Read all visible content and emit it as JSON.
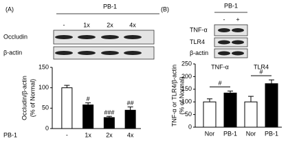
{
  "panels": [
    {
      "label": "(A)",
      "treatment": "PB-1",
      "lanes": [
        "-",
        "1x",
        "2x",
        "4x"
      ],
      "rows": [
        "Occludin",
        "β-actin"
      ]
    },
    {
      "label": "(B)",
      "treatment": "PB-1",
      "lanes": [
        "-",
        "+"
      ],
      "rows": [
        "TNF-α",
        "TLR4",
        "β-actin"
      ]
    }
  ],
  "chart_data": [
    {
      "type": "bar",
      "ylabel": [
        "Occludin/β-actin",
        "(% of Normal)"
      ],
      "xlabel": "PB-1",
      "categories": [
        "-",
        "1x",
        "2x",
        "4x"
      ],
      "values": [
        100,
        58,
        27,
        45
      ],
      "errors": [
        6,
        5,
        3,
        8
      ],
      "colors": [
        "#ffffff",
        "#000000",
        "#000000",
        "#000000"
      ],
      "annotations": [
        {
          "bar": 1,
          "text": "#"
        },
        {
          "bar": 2,
          "text": "###"
        },
        {
          "bar": 3,
          "text": "##"
        }
      ],
      "ylim": [
        0,
        150
      ],
      "yticks": [
        0,
        50,
        100,
        150
      ]
    },
    {
      "type": "bar",
      "ylabel": [
        "TNF-α or TLR4/β-actin",
        "(% of Normal)"
      ],
      "categories": [
        "Nor",
        "PB-1",
        "Nor",
        "PB-1"
      ],
      "values": [
        100,
        135,
        100,
        172
      ],
      "errors": [
        12,
        8,
        22,
        15
      ],
      "colors": [
        "#ffffff",
        "#000000",
        "#ffffff",
        "#000000"
      ],
      "group_labels": [
        "TNF-α",
        "TLR4"
      ],
      "brackets": [
        {
          "bars": [
            0,
            1
          ],
          "text": "#"
        },
        {
          "bars": [
            2,
            3
          ],
          "text": "#"
        }
      ],
      "ylim": [
        0,
        250
      ],
      "yticks": [
        0,
        50,
        100,
        150,
        200,
        250
      ]
    }
  ]
}
